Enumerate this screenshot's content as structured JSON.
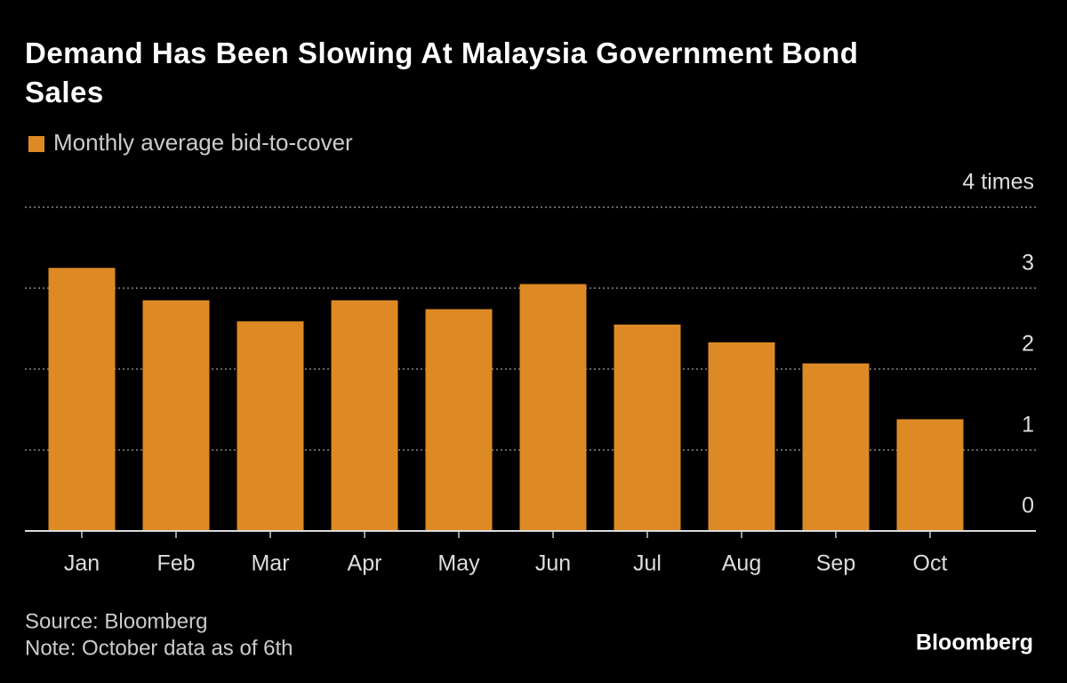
{
  "chart_data": {
    "type": "bar",
    "title": "Demand Has Been Slowing At Malaysia Government Bond Sales",
    "categories": [
      "Jan",
      "Feb",
      "Mar",
      "Apr",
      "May",
      "Jun",
      "Jul",
      "Aug",
      "Sep",
      "Oct"
    ],
    "series": [
      {
        "name": "Monthly average bid-to-cover",
        "color": "#dd8a25",
        "values": [
          3.25,
          2.85,
          2.59,
          2.85,
          2.74,
          3.05,
          2.55,
          2.33,
          2.07,
          1.38
        ]
      }
    ],
    "ylim": [
      0,
      4
    ],
    "yticks": [
      0,
      1,
      2,
      3,
      {
        "value": 4,
        "label": "4 times"
      }
    ],
    "grid": true,
    "source": "Source: Bloomberg",
    "note": "Note: October data as of 6th",
    "brand": "Bloomberg"
  }
}
